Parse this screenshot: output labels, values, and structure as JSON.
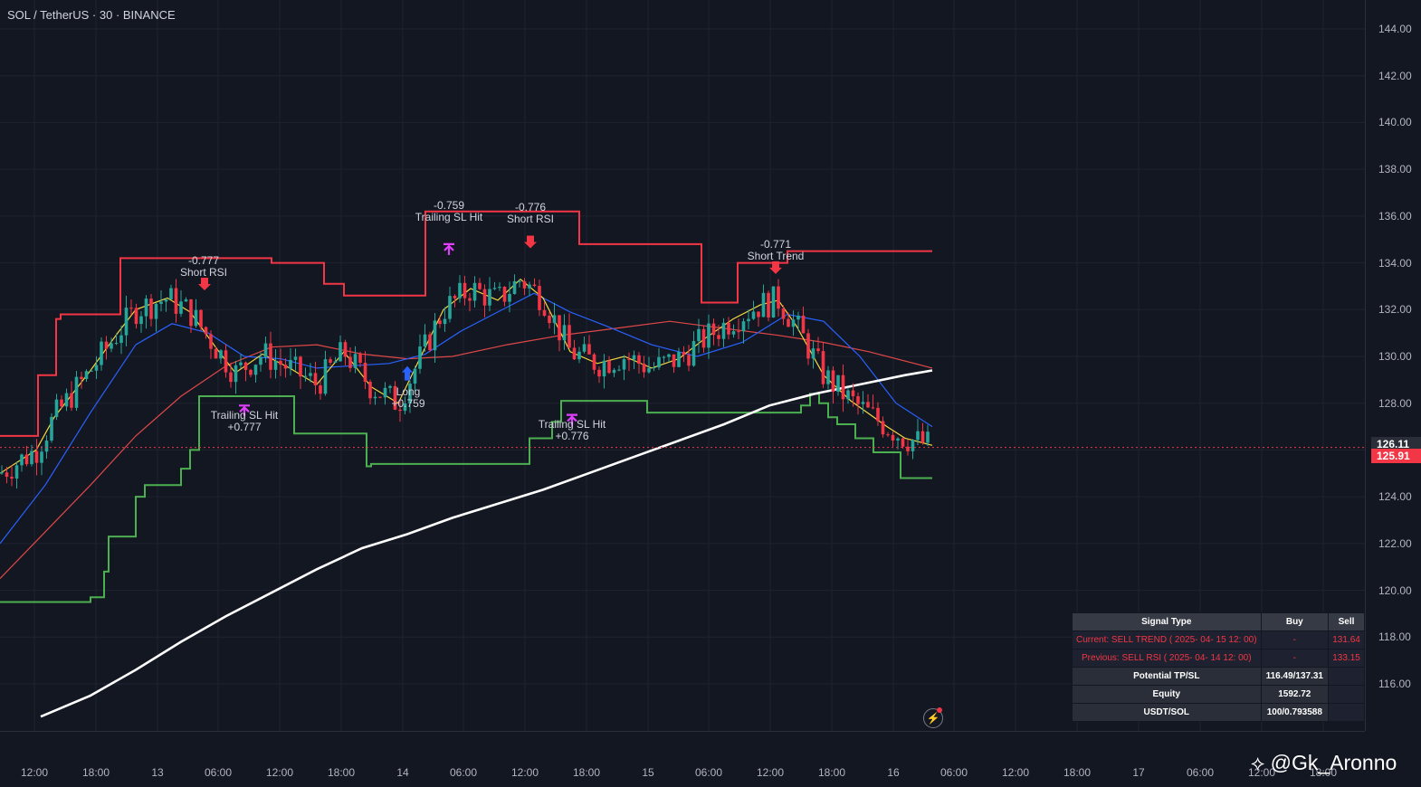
{
  "header": {
    "symbol_title": "SOL / TetherUS · 30 · BINANCE"
  },
  "price_axis": {
    "labels": [
      "144.00",
      "142.00",
      "140.00",
      "138.00",
      "136.00",
      "134.00",
      "132.00",
      "130.00",
      "128.00",
      "126.00",
      "124.00",
      "122.00",
      "120.00",
      "118.00",
      "116.00"
    ],
    "last_price_gray": "126.11",
    "last_price_red": "125.91"
  },
  "time_axis": {
    "labels": [
      "12:00",
      "18:00",
      "13",
      "06:00",
      "12:00",
      "18:00",
      "14",
      "06:00",
      "12:00",
      "18:00",
      "15",
      "06:00",
      "12:00",
      "18:00",
      "16",
      "06:00",
      "12:00",
      "18:00",
      "17",
      "06:00",
      "12:00",
      "18:00"
    ]
  },
  "annotations": [
    {
      "id": "short-rsi-1",
      "lines": [
        "-0.777",
        "Short RSI"
      ]
    },
    {
      "id": "trailing-sl-1",
      "lines": [
        "Trailing SL Hit",
        "+0.777"
      ]
    },
    {
      "id": "trailing-sl-2",
      "lines": [
        "-0.759",
        "Trailing SL Hit"
      ]
    },
    {
      "id": "long-1",
      "lines": [
        "Long",
        "+0.759"
      ]
    },
    {
      "id": "short-rsi-2",
      "lines": [
        "-0.776",
        "Short RSI"
      ]
    },
    {
      "id": "trailing-sl-3",
      "lines": [
        "Trailing SL Hit",
        "+0.776"
      ]
    },
    {
      "id": "short-trend-1",
      "lines": [
        "-0.771",
        "Short Trend"
      ]
    }
  ],
  "signal_table": {
    "headers": [
      "Signal Type",
      "Buy",
      "Sell"
    ],
    "rows": [
      {
        "label": "Current: SELL TREND ( 2025- 04- 15  12: 00)",
        "buy": "-",
        "sell": "131.64"
      },
      {
        "label": "Previous: SELL RSI ( 2025- 04- 14  12: 00)",
        "buy": "-",
        "sell": "133.15"
      }
    ],
    "stats": [
      {
        "label": "Potential TP/SL",
        "value": "116.49/137.31"
      },
      {
        "label": "Equity",
        "value": "1592.72"
      },
      {
        "label": "USDT/SOL",
        "value": "100/0.793588"
      }
    ]
  },
  "watermark": "@Gk_Aronno",
  "colors": {
    "background": "#131722",
    "grid": "#1f2330",
    "bull": "#26a69a",
    "bear": "#f23645",
    "ema_fast": "#f5d742",
    "ema_mid": "#2962ff",
    "ema_slow": "#e04848",
    "sma_long": "#ffffff",
    "stop_upper": "#f23645",
    "stop_lower": "#4caf50",
    "marker_short": "#f23645",
    "marker_long": "#2962ff",
    "marker_exit": "#e040fb"
  },
  "chart_data": {
    "type": "candlestick",
    "symbol": "SOL / TetherUS",
    "interval": "30",
    "exchange": "BINANCE",
    "ylim": [
      114.5,
      145.2
    ],
    "last_price": 125.91,
    "close_line": 126.11,
    "series": [
      {
        "id": "upper-stop",
        "x": [
          0,
          40,
          42,
          62,
          67,
          130,
          133,
          300,
          355,
          358,
          375,
          380,
          465,
          470,
          640,
          775,
          780,
          815,
          825,
          870,
          1030
        ],
        "y": [
          126.6,
          126.6,
          129.2,
          131.6,
          131.8,
          131.8,
          134.2,
          134.0,
          134.0,
          133.1,
          133.1,
          132.6,
          132.6,
          136.2,
          134.8,
          132.3,
          132.3,
          134.0,
          134.0,
          134.5,
          134.5
        ]
      },
      {
        "id": "lower-stop",
        "x": [
          0,
          95,
          100,
          115,
          120,
          150,
          160,
          200,
          210,
          220,
          325,
          405,
          410,
          580,
          585,
          610,
          620,
          715,
          885,
          895,
          905,
          915,
          925,
          945,
          965,
          995,
          1030
        ],
        "y": [
          119.5,
          119.5,
          119.7,
          120.8,
          122.3,
          124.0,
          124.5,
          125.2,
          126.0,
          128.3,
          126.7,
          125.3,
          125.4,
          125.4,
          126.5,
          127.2,
          128.1,
          127.6,
          127.9,
          128.4,
          128.0,
          127.4,
          127.1,
          126.5,
          125.9,
          124.8,
          124.8
        ]
      },
      {
        "id": "ema-fast",
        "x": [
          0,
          40,
          60,
          100,
          130,
          150,
          185,
          210,
          240,
          260,
          290,
          320,
          350,
          380,
          410,
          440,
          460,
          490,
          520,
          550,
          575,
          600,
          630,
          660,
          690,
          720,
          750,
          780,
          810,
          840,
          860,
          880,
          910,
          940,
          980,
          1000,
          1030
        ],
        "y": [
          125.0,
          126.0,
          127.4,
          129.4,
          131.0,
          132.0,
          132.5,
          131.9,
          130.3,
          129.3,
          130.1,
          129.5,
          128.8,
          130.2,
          128.7,
          128.0,
          129.6,
          132.0,
          132.9,
          132.4,
          133.3,
          132.5,
          130.2,
          129.7,
          130.0,
          129.5,
          129.9,
          130.8,
          131.6,
          132.2,
          132.4,
          131.3,
          129.2,
          128.1,
          127.0,
          126.5,
          126.2
        ]
      },
      {
        "id": "ema-mid",
        "x": [
          0,
          50,
          100,
          150,
          190,
          230,
          270,
          310,
          350,
          390,
          430,
          470,
          510,
          550,
          590,
          630,
          670,
          720,
          770,
          820,
          870,
          910,
          950,
          990,
          1030
        ],
        "y": [
          122.0,
          124.5,
          127.6,
          130.5,
          131.4,
          131.0,
          130.0,
          129.9,
          129.5,
          129.6,
          129.7,
          130.1,
          131.1,
          131.9,
          132.7,
          131.9,
          131.3,
          130.5,
          130.0,
          130.6,
          131.8,
          131.5,
          130.0,
          128.0,
          127.0
        ]
      },
      {
        "id": "ema-slow",
        "x": [
          0,
          50,
          100,
          150,
          200,
          250,
          300,
          350,
          400,
          450,
          500,
          560,
          620,
          680,
          740,
          800,
          860,
          910,
          960,
          1030
        ],
        "y": [
          120.5,
          122.5,
          124.5,
          126.6,
          128.3,
          129.6,
          130.4,
          130.5,
          130.1,
          129.9,
          130.0,
          130.5,
          130.9,
          131.2,
          131.5,
          131.2,
          130.9,
          130.6,
          130.2,
          129.5
        ]
      },
      {
        "id": "sma-long",
        "x": [
          45,
          100,
          150,
          200,
          250,
          300,
          350,
          400,
          450,
          500,
          550,
          600,
          650,
          700,
          750,
          800,
          850,
          900,
          950,
          1000,
          1030
        ],
        "y": [
          114.6,
          115.5,
          116.6,
          117.8,
          118.9,
          119.9,
          120.9,
          121.8,
          122.4,
          123.1,
          123.7,
          124.3,
          125.0,
          125.7,
          126.4,
          127.1,
          127.9,
          128.4,
          128.8,
          129.2,
          129.4
        ]
      }
    ],
    "signals": [
      {
        "type": "short",
        "price": 132.9,
        "label": "Short RSI",
        "pnl": "-0.777"
      },
      {
        "type": "exit",
        "price": 127.9,
        "label": "Trailing SL Hit",
        "pnl": "+0.777"
      },
      {
        "type": "long",
        "price": 129.2,
        "label": "Long",
        "pnl": "+0.759"
      },
      {
        "type": "exit",
        "price": 134.8,
        "label": "Trailing SL Hit",
        "pnl": "-0.759"
      },
      {
        "type": "short",
        "price": 134.7,
        "label": "Short RSI",
        "pnl": "-0.776"
      },
      {
        "type": "exit",
        "price": 127.5,
        "label": "Trailing SL Hit",
        "pnl": "+0.776"
      },
      {
        "type": "short",
        "price": 133.6,
        "label": "Short Trend",
        "pnl": "-0.771"
      }
    ]
  }
}
